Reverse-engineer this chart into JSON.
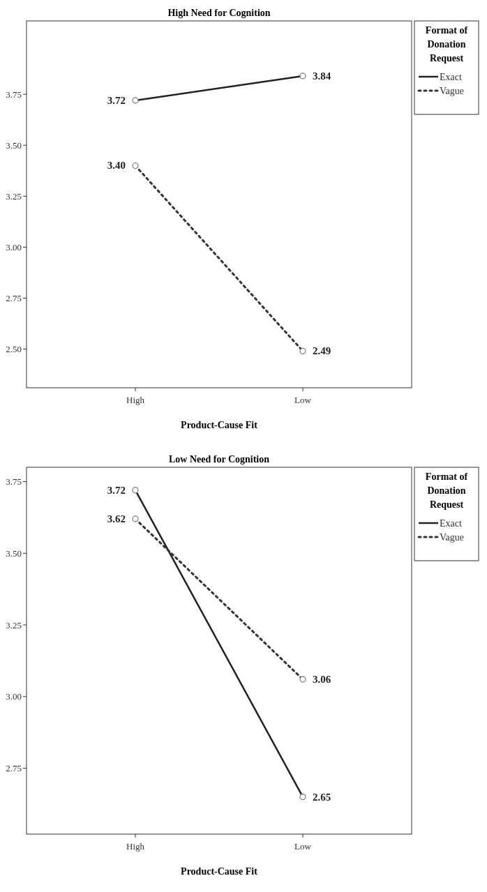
{
  "chart_data": [
    {
      "type": "line",
      "title": "High Need for Cognition",
      "xlabel": "Product-Cause Fit",
      "legend_title": "Format of Donation Request",
      "categories": [
        "High",
        "Low"
      ],
      "ylim": [
        2.31,
        4.11
      ],
      "yticks": [
        {
          "value": 2.5,
          "label": "2.50"
        },
        {
          "value": 2.75,
          "label": "2.75"
        },
        {
          "value": 3,
          "label": "3.00"
        },
        {
          "value": 3.25,
          "label": "3.25"
        },
        {
          "value": 3.5,
          "label": "3.50"
        },
        {
          "value": 3.75,
          "label": "3.75"
        }
      ],
      "legend": "right",
      "marker": "circle",
      "grid": false,
      "series": [
        {
          "name": "Exact",
          "color": "#222222",
          "line_style": "solid",
          "values": [
            3.72,
            3.84
          ],
          "value_labels": [
            "3.72",
            "3.84"
          ]
        },
        {
          "name": "Vague",
          "color": "#333333",
          "line_style": "dotted",
          "values": [
            3.4,
            2.49
          ],
          "value_labels": [
            "3.40",
            "2.49"
          ]
        }
      ]
    },
    {
      "type": "line",
      "title": "Low Need for Cognition",
      "xlabel": "Product-Cause Fit",
      "legend_title": "Format of Donation Request",
      "categories": [
        "High",
        "Low"
      ],
      "ylim": [
        2.52,
        3.8
      ],
      "yticks": [
        {
          "value": 2.75,
          "label": "2.75"
        },
        {
          "value": 3,
          "label": "3.00"
        },
        {
          "value": 3.25,
          "label": "3.25"
        },
        {
          "value": 3.5,
          "label": "3.50"
        },
        {
          "value": 3.75,
          "label": "3.75"
        }
      ],
      "legend": "right",
      "marker": "circle",
      "grid": false,
      "series": [
        {
          "name": "Exact",
          "color": "#222222",
          "line_style": "solid",
          "values": [
            3.72,
            2.65
          ],
          "value_labels": [
            "3.72",
            "2.65"
          ]
        },
        {
          "name": "Vague",
          "color": "#333333",
          "line_style": "dotted",
          "values": [
            3.62,
            3.06
          ],
          "value_labels": [
            "3.62",
            "3.06"
          ]
        }
      ]
    }
  ]
}
